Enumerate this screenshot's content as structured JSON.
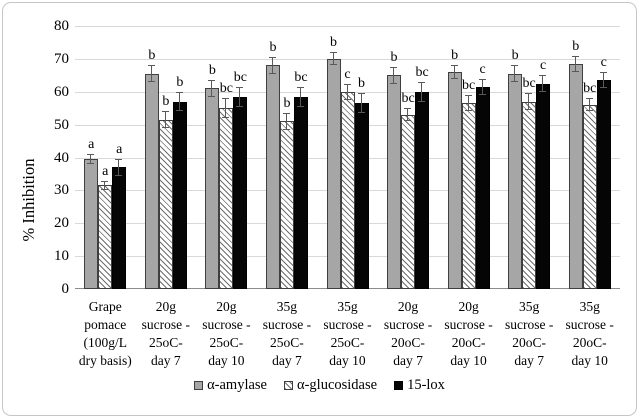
{
  "figure": {
    "background": "#ffffff",
    "border_color": "#c6c6c6"
  },
  "chart_data": {
    "type": "bar",
    "title": "",
    "xlabel": "",
    "ylabel": "% Inhibition",
    "ylim": [
      0,
      80
    ],
    "yticks": [
      0,
      10,
      20,
      30,
      40,
      50,
      60,
      70,
      80
    ],
    "grid": true,
    "legend_position": "bottom",
    "gridline_color": "#d9d9d9",
    "axis_line_color": "#8c8c8c",
    "error_bar_color": "#595959",
    "categories": [
      "Grape pomace (100g/L dry basis)",
      "20g sucrose - 25oC- day 7",
      "20g sucrose - 25oC- day 10",
      "35g sucrose - 25oC- day 7",
      "35g sucrose - 25oC- day 10",
      "20g sucrose - 20oC- day 7",
      "20g sucrose - 20oC- day 10",
      "35g sucrose - 20oC- day 7",
      "35g sucrose - 20oC- day 10"
    ],
    "category_label_lines": [
      [
        "Grape",
        "pomace",
        "(100g/L",
        "dry basis)"
      ],
      [
        "20g",
        "sucrose -",
        "25oC-",
        "day 7"
      ],
      [
        "20g",
        "sucrose -",
        "25oC-",
        "day 10"
      ],
      [
        "35g",
        "sucrose -",
        "25oC-",
        "day 7"
      ],
      [
        "35g",
        "sucrose -",
        "25oC-",
        "day 10"
      ],
      [
        "20g",
        "sucrose -",
        "20oC-",
        "day 7"
      ],
      [
        "20g",
        "sucrose -",
        "20oC-",
        "day 10"
      ],
      [
        "35g",
        "sucrose -",
        "20oC-",
        "day 7"
      ],
      [
        "35g",
        "sucrose -",
        "20oC-",
        "day 10"
      ]
    ],
    "series": [
      {
        "name": "α-amylase",
        "pattern": "solid-gray",
        "color": "#a6a6a6",
        "border_color": "#3f3f3f",
        "values": [
          39.5,
          65.5,
          61,
          68,
          70,
          65,
          66,
          65.5,
          68.5
        ],
        "errors": [
          1.5,
          2.5,
          2.5,
          2.5,
          2,
          2.5,
          2,
          2.5,
          2.5
        ],
        "sig_letters": [
          "a",
          "b",
          "b",
          "b",
          "b",
          "b",
          "b",
          "b",
          "b"
        ]
      },
      {
        "name": "α-glucosidase",
        "pattern": "diagonal-hatch",
        "color": "#ffffff",
        "hatch_color": "#6e6e6e",
        "border_color": "#3f3f3f",
        "values": [
          31.5,
          51.5,
          55,
          51,
          60,
          53,
          56.5,
          57,
          56
        ],
        "errors": [
          1.5,
          2.5,
          3,
          2.5,
          2.5,
          2,
          2.5,
          2.5,
          2
        ],
        "sig_letters": [
          "a",
          "b",
          "bc",
          "b",
          "c",
          "bc",
          "bc",
          "bc",
          "bc"
        ]
      },
      {
        "name": "15-lox",
        "pattern": "solid-black",
        "color": "#050505",
        "border_color": "#000000",
        "values": [
          37,
          57,
          58.5,
          58.5,
          56.5,
          60,
          61.5,
          62.5,
          63.5
        ],
        "errors": [
          2.5,
          3,
          3,
          3,
          3,
          3,
          2.5,
          2.5,
          2.5
        ],
        "sig_letters": [
          "a",
          "b",
          "bc",
          "bc",
          "b",
          "bc",
          "c",
          "c",
          "c"
        ]
      }
    ]
  }
}
